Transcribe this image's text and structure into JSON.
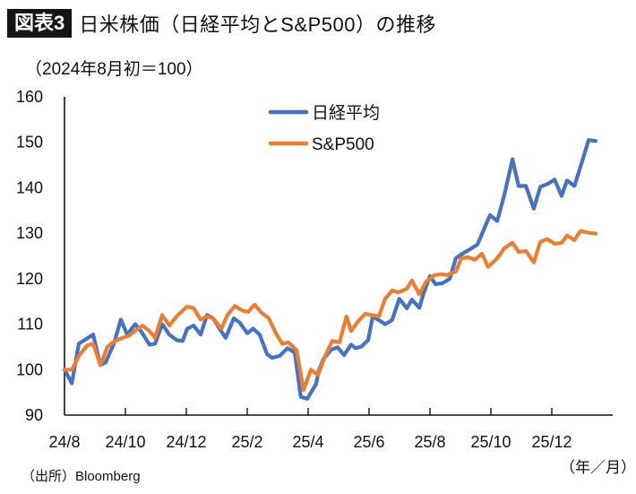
{
  "header": {
    "badge": "図表3",
    "title": "日米株価（日経平均とS&P500）の推移"
  },
  "unit_note": "（2024年8月初＝100）",
  "source_note": "（出所）Bloomberg",
  "x_unit": "（年／月）",
  "chart_data": {
    "type": "line",
    "title": "日米株価（日経平均とS&P500）の推移",
    "subtitle": "（2024年8月初＝100）",
    "xlabel": "（年／月）",
    "ylabel": "",
    "x_ticks": [
      "24/8",
      "24/10",
      "24/12",
      "25/2",
      "25/4",
      "25/6",
      "25/8",
      "25/10",
      "25/12"
    ],
    "x_tick_months": [
      0,
      2,
      4,
      6,
      8,
      10,
      12,
      14,
      16
    ],
    "xlim_months": [
      0,
      18
    ],
    "y_ticks": [
      90,
      100,
      110,
      120,
      130,
      140,
      150,
      160
    ],
    "ylim": [
      90,
      160
    ],
    "grid": false,
    "legend_position": "top-center",
    "colors": {
      "nikkei": "#4472C4",
      "sp500": "#ED7D31"
    },
    "series": [
      {
        "name": "日経平均",
        "key": "nikkei",
        "x_months": [
          0,
          0.24,
          0.47,
          0.94,
          1.18,
          1.35,
          1.62,
          1.85,
          2.06,
          2.32,
          2.53,
          2.79,
          2.97,
          3.21,
          3.44,
          3.68,
          3.88,
          4.03,
          4.24,
          4.47,
          4.68,
          4.88,
          5.09,
          5.29,
          5.56,
          5.76,
          6.0,
          6.19,
          6.41,
          6.65,
          6.82,
          7.06,
          7.32,
          7.56,
          7.76,
          7.97,
          8.26,
          8.35,
          8.5,
          8.76,
          8.97,
          9.18,
          9.41,
          9.56,
          9.76,
          9.97,
          10.12,
          10.32,
          10.53,
          10.76,
          10.99,
          11.24,
          11.41,
          11.65,
          11.79,
          12.0,
          12.18,
          12.41,
          12.65,
          12.85,
          13.06,
          13.32,
          13.56,
          13.97,
          14.21,
          14.44,
          14.71,
          14.91,
          15.15,
          15.41,
          15.62,
          15.85,
          16.09,
          16.32,
          16.5,
          16.74,
          16.94,
          17.21,
          17.44
        ],
        "values": [
          100,
          97,
          105.7,
          107.7,
          101,
          101.6,
          105.7,
          111,
          107.7,
          110,
          108.3,
          105.5,
          105.7,
          110,
          107.7,
          106.5,
          106.3,
          109,
          109.7,
          107.7,
          112,
          111.3,
          109,
          107,
          111.3,
          110.3,
          108,
          109,
          107.7,
          103.4,
          102.6,
          103,
          104.7,
          103.8,
          94,
          93.6,
          96.8,
          99.8,
          102.3,
          104.4,
          104.9,
          103.2,
          105.5,
          104.7,
          105.1,
          106.5,
          111.7,
          110.9,
          110,
          110.9,
          115.6,
          113.5,
          115.4,
          113.6,
          116.8,
          120.6,
          118.8,
          119,
          120,
          124.5,
          125.5,
          126.5,
          127.5,
          134,
          132.7,
          138.4,
          146.3,
          140.4,
          140.4,
          135.4,
          140.2,
          140.8,
          141.8,
          138.2,
          141.6,
          140.4,
          144.6,
          150.5,
          150.3,
          148.9
        ]
      },
      {
        "name": "S&P500",
        "key": "sp500",
        "x_months": [
          0,
          0.24,
          0.47,
          0.74,
          0.94,
          1.18,
          1.41,
          1.65,
          1.91,
          2.12,
          2.35,
          2.56,
          2.79,
          2.97,
          3.21,
          3.44,
          3.68,
          4.03,
          4.24,
          4.47,
          4.68,
          4.88,
          5.15,
          5.35,
          5.59,
          5.85,
          6.03,
          6.24,
          6.47,
          6.71,
          6.94,
          7.15,
          7.35,
          7.62,
          7.85,
          8.09,
          8.32,
          8.56,
          8.79,
          9.03,
          9.26,
          9.41,
          9.65,
          9.88,
          10.09,
          10.32,
          10.53,
          10.76,
          10.97,
          11.24,
          11.41,
          11.65,
          11.88,
          12.15,
          12.38,
          12.56,
          12.85,
          13.03,
          13.26,
          13.47,
          13.71,
          13.91,
          14.21,
          14.44,
          14.71,
          14.91,
          15.15,
          15.41,
          15.62,
          15.85,
          16.09,
          16.32,
          16.5,
          16.74,
          16.94,
          17.21,
          17.44
        ],
        "values": [
          100,
          100,
          103,
          105.3,
          105.7,
          101,
          105,
          106.3,
          107,
          107.5,
          108.7,
          109.7,
          108.5,
          107,
          112,
          109.7,
          111.7,
          113.9,
          113.5,
          111,
          111.7,
          111.3,
          109,
          112,
          114,
          113,
          112.7,
          114.3,
          112.5,
          111.3,
          108,
          105.7,
          106,
          104.3,
          95.5,
          100,
          98.8,
          103,
          106.3,
          106,
          111.7,
          108.5,
          110.7,
          112.3,
          112,
          111.7,
          115.6,
          117.4,
          117,
          117.8,
          119.6,
          116.6,
          119.4,
          120.8,
          121,
          120.8,
          121.6,
          124.5,
          124.7,
          124.2,
          125.5,
          122.6,
          124.5,
          126.7,
          127.9,
          125.9,
          126.1,
          123.6,
          128.1,
          128.7,
          127.7,
          127.9,
          129.5,
          128.5,
          130.5,
          130.1,
          129.9
        ]
      }
    ]
  }
}
